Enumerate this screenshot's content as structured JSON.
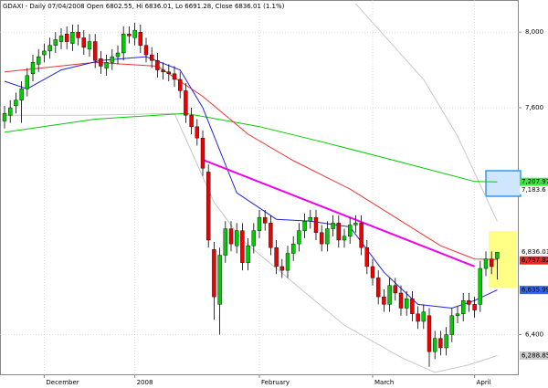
{
  "chart_data": {
    "type": "candlestick",
    "title": "GDAXI - Daily 07/04/2008 Open 6802.55, Hi 6836.01, Lo 6691.28, Close 6836.01 (1.1%)",
    "categories": [
      null,
      null,
      null,
      null,
      null,
      null,
      null,
      "December",
      null,
      null,
      null,
      null,
      null,
      null,
      null,
      null,
      null,
      null,
      null,
      null,
      null,
      null,
      null,
      "2008",
      null,
      null,
      null,
      null,
      null,
      null,
      null,
      null,
      null,
      null,
      null,
      null,
      null,
      null,
      null,
      null,
      null,
      null,
      null,
      null,
      null,
      "February",
      null,
      null,
      null,
      null,
      null,
      null,
      null,
      null,
      null,
      null,
      null,
      null,
      null,
      null,
      null,
      null,
      null,
      null,
      null,
      "March",
      null,
      null,
      null,
      null,
      null,
      null,
      null,
      null,
      null,
      null,
      null,
      null,
      null,
      null,
      null,
      null,
      null,
      "April",
      null,
      null,
      null,
      null
    ],
    "open": [
      7530,
      7560,
      7610,
      7640,
      7700,
      7780,
      7830,
      7880,
      7900,
      7930,
      7950,
      7990,
      7940,
      8000,
      7970,
      7910,
      7950,
      7860,
      7810,
      7840,
      7870,
      7890,
      7990,
      7970,
      8000,
      7930,
      7880,
      7850,
      7800,
      7790,
      7780,
      7750,
      7690,
      7560,
      7500,
      7440,
      7260,
      6850,
      6560,
      6820,
      6960,
      6870,
      6950,
      6780,
      6870,
      6950,
      7020,
      6990,
      6860,
      6760,
      6740,
      6830,
      6880,
      6950,
      7000,
      7020,
      6940,
      6880,
      6960,
      6990,
      6900,
      6920,
      6980,
      6990,
      6860,
      6760,
      6700,
      6600,
      6560,
      6660,
      6620,
      6540,
      6590,
      6510,
      6470,
      6500,
      6310,
      6380,
      6330,
      6400,
      6500,
      6510,
      6580,
      6560,
      6560,
      6750,
      6800,
      6802.55
    ],
    "high": [
      7610,
      7640,
      7680,
      7740,
      7810,
      7880,
      7910,
      7940,
      7970,
      8000,
      8020,
      8030,
      8040,
      8040,
      8010,
      7990,
      7990,
      7900,
      7880,
      7910,
      7930,
      8030,
      8030,
      8050,
      8040,
      7970,
      7920,
      7890,
      7840,
      7830,
      7820,
      7790,
      7730,
      7600,
      7540,
      7480,
      7300,
      6890,
      6860,
      7000,
      7000,
      6990,
      6990,
      6910,
      6990,
      7060,
      7060,
      7030,
      6900,
      6800,
      6870,
      6920,
      6990,
      7040,
      7060,
      7060,
      6980,
      7000,
      7030,
      7030,
      6960,
      7020,
      7030,
      7030,
      6900,
      6800,
      6740,
      6640,
      6700,
      6700,
      6660,
      6630,
      6630,
      6550,
      6560,
      6540,
      6420,
      6420,
      6440,
      6540,
      6550,
      6620,
      6620,
      6600,
      6790,
      6840,
      6840,
      6836.01
    ],
    "low": [
      7490,
      7520,
      7570,
      7520,
      7660,
      7740,
      7790,
      7840,
      7860,
      7890,
      7910,
      7910,
      7900,
      7930,
      7880,
      7870,
      7810,
      7780,
      7770,
      7800,
      7830,
      7850,
      7940,
      7930,
      7890,
      7840,
      7810,
      7760,
      7750,
      7740,
      7710,
      7650,
      7520,
      7460,
      7400,
      7240,
      6860,
      6480,
      6400,
      6780,
      6840,
      6830,
      6740,
      6740,
      6830,
      6910,
      6950,
      6820,
      6720,
      6700,
      6700,
      6790,
      6840,
      6910,
      6960,
      6900,
      6840,
      6840,
      6920,
      6860,
      6860,
      6880,
      6940,
      6820,
      6720,
      6660,
      6560,
      6520,
      6520,
      6580,
      6500,
      6500,
      6470,
      6430,
      6430,
      6230,
      6270,
      6290,
      6290,
      6360,
      6460,
      6470,
      6520,
      6490,
      6520,
      6710,
      6720,
      6691.28
    ],
    "close": [
      7570,
      7600,
      7640,
      7700,
      7770,
      7840,
      7870,
      7900,
      7930,
      7960,
      7980,
      7950,
      8000,
      7970,
      7920,
      7950,
      7850,
      7820,
      7840,
      7870,
      7890,
      7990,
      7980,
      8010,
      7930,
      7880,
      7850,
      7800,
      7790,
      7780,
      7750,
      7690,
      7560,
      7500,
      7440,
      7280,
      6900,
      6600,
      6820,
      6960,
      6880,
      6950,
      6780,
      6870,
      6950,
      7020,
      6990,
      6860,
      6760,
      6740,
      6830,
      6880,
      6950,
      7000,
      7020,
      6940,
      6880,
      6960,
      6990,
      6900,
      6920,
      6980,
      6990,
      6860,
      6760,
      6700,
      6600,
      6560,
      6660,
      6620,
      6540,
      6590,
      6510,
      6470,
      6520,
      6310,
      6380,
      6330,
      6400,
      6500,
      6510,
      6580,
      6560,
      6530,
      6750,
      6800,
      6760,
      6836.01
    ],
    "up_color": "#00cc00",
    "down_color": "#ee0000",
    "lines": [
      {
        "color": "#c8c8c8",
        "x": [
          0,
          15,
          30,
          37,
          42,
          50,
          60,
          70,
          76,
          82,
          87
        ],
        "values": [
          7560,
          7560,
          7570,
          7100,
          6900,
          6700,
          6450,
          6280,
          6200,
          6240,
          6289
        ]
      },
      {
        "color": "#c8c8c8",
        "x": [
          62,
          68,
          74,
          80,
          87
        ],
        "values": [
          8150,
          7950,
          7750,
          7450,
          7000
        ]
      },
      {
        "color": "#00cc00",
        "x": [
          0,
          16,
          32,
          45,
          56,
          69,
          83,
          87
        ],
        "values": [
          7470,
          7540,
          7570,
          7500,
          7420,
          7320,
          7210,
          7208
        ]
      },
      {
        "color": "#ee3333",
        "x": [
          0,
          16,
          27,
          35,
          43,
          51,
          61,
          69,
          77,
          83,
          87
        ],
        "values": [
          7790,
          7840,
          7820,
          7660,
          7460,
          7320,
          7170,
          7020,
          6870,
          6800,
          6798
        ]
      },
      {
        "color": "#2222dd",
        "x": [
          0,
          4,
          10,
          17,
          25,
          31,
          35,
          41,
          48,
          54,
          61,
          67,
          73,
          79,
          83,
          87
        ],
        "values": [
          7740,
          7700,
          7800,
          7850,
          7870,
          7800,
          7600,
          7150,
          7010,
          7000,
          6970,
          6730,
          6560,
          6540,
          6580,
          6636
        ]
      },
      {
        "color": "#ee00ee",
        "x": [
          35,
          83
        ],
        "values": [
          7325,
          6761
        ],
        "width": 2
      }
    ],
    "price_labels": [
      {
        "value": 7207.97,
        "label": "7,207.97",
        "color": "#33ee33"
      },
      {
        "value": 7183.6,
        "label": "7,183.6",
        "color": "#ffffff"
      },
      {
        "value": 6836.01,
        "label": "6,836.01",
        "color": "#ffffff"
      },
      {
        "value": 6797.82,
        "label": "6,797.82",
        "color": "#ee2222"
      },
      {
        "value": 6635.99,
        "label": "6,635.99",
        "color": "#3366ee"
      },
      {
        "value": 6288.85,
        "label": "6,288.85",
        "color": "#cccccc"
      }
    ],
    "ylim": [
      6190,
      8170
    ],
    "yticks": [
      {
        "value": 6400,
        "label": "6,400"
      },
      {
        "value": 7600,
        "label": "7,600"
      },
      {
        "value": 8000,
        "label": "8,000"
      }
    ],
    "grid": true
  }
}
